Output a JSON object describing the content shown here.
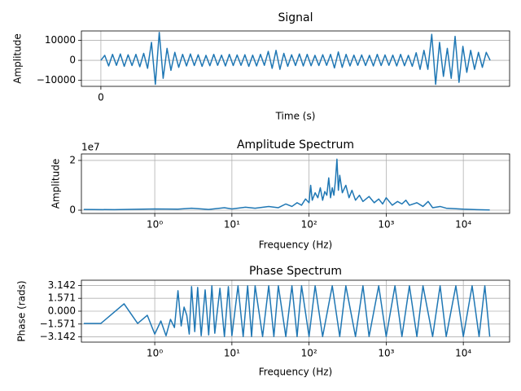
{
  "chart_data": [
    {
      "type": "line",
      "title": "Signal",
      "xlabel": "Time (s)",
      "ylabel": "Amplitude",
      "color": "#1f77b4",
      "grid": true,
      "xscale": "linear",
      "xlim": [
        -0.05,
        1.05
      ],
      "xticks": [
        0
      ],
      "ylim": [
        -13000,
        14700
      ],
      "yticks": [
        10000,
        0,
        {
          "value": -10000,
          "label": "−10000"
        }
      ],
      "x": [
        0,
        0.01,
        0.02,
        0.03,
        0.04,
        0.05,
        0.06,
        0.07,
        0.08,
        0.09,
        0.1,
        0.11,
        0.12,
        0.13,
        0.14,
        0.15,
        0.16,
        0.17,
        0.18,
        0.19,
        0.2,
        0.21,
        0.22,
        0.23,
        0.24,
        0.25,
        0.26,
        0.27,
        0.28,
        0.29,
        0.3,
        0.31,
        0.32,
        0.33,
        0.34,
        0.35,
        0.36,
        0.37,
        0.38,
        0.39,
        0.4,
        0.41,
        0.42,
        0.43,
        0.44,
        0.45,
        0.46,
        0.47,
        0.48,
        0.49,
        0.5,
        0.51,
        0.52,
        0.53,
        0.54,
        0.55,
        0.56,
        0.57,
        0.58,
        0.59,
        0.6,
        0.61,
        0.62,
        0.63,
        0.64,
        0.65,
        0.66,
        0.67,
        0.68,
        0.69,
        0.7,
        0.71,
        0.72,
        0.73,
        0.74,
        0.75,
        0.76,
        0.77,
        0.78,
        0.79,
        0.8,
        0.81,
        0.82,
        0.83,
        0.84,
        0.85,
        0.86,
        0.87,
        0.88,
        0.89,
        0.9,
        0.91,
        0.92,
        0.93,
        0.94,
        0.95,
        0.96,
        0.97,
        0.98,
        0.99,
        1
      ],
      "values": [
        0,
        2500,
        -2800,
        3000,
        -2500,
        3200,
        -3000,
        2800,
        -2600,
        3000,
        -3200,
        3500,
        -4000,
        9000,
        -12000,
        14000,
        -9000,
        6000,
        -5000,
        4000,
        -3500,
        3000,
        -2800,
        3200,
        -2600,
        2800,
        -3000,
        2500,
        -2700,
        3000,
        -2500,
        2600,
        -2800,
        3000,
        -2600,
        2700,
        -2500,
        2800,
        -3000,
        2600,
        -2800,
        3000,
        -2500,
        4500,
        -4000,
        5000,
        -4500,
        3500,
        -3000,
        2800,
        -2600,
        3200,
        -2800,
        3000,
        -2700,
        2500,
        -2600,
        2800,
        -2500,
        3000,
        -3800,
        4200,
        -3500,
        3000,
        -2800,
        2600,
        -2500,
        2700,
        -2600,
        2500,
        -2800,
        3000,
        -2600,
        2700,
        -2500,
        2600,
        -2800,
        3000,
        -2700,
        2500,
        -3000,
        3800,
        -4500,
        5000,
        -4500,
        13000,
        -12000,
        9000,
        -8000,
        6000,
        -9000,
        12000,
        -11000,
        7000,
        -6000,
        5000,
        -4500,
        4000,
        -3500,
        4000,
        0
      ]
    },
    {
      "type": "line",
      "title": "Amplitude Spectrum",
      "xlabel": "Frequency (Hz)",
      "ylabel": "Amplitude",
      "y_offset_label": "1e7",
      "color": "#1f77b4",
      "grid": true,
      "xscale": "log",
      "xlim": [
        0.112,
        39800
      ],
      "xticks": [
        {
          "value": 1,
          "label": "10⁰"
        },
        {
          "value": 10,
          "label": "10¹"
        },
        {
          "value": 100,
          "label": "10²"
        },
        {
          "value": 1000,
          "label": "10³"
        },
        {
          "value": 10000,
          "label": "10⁴"
        }
      ],
      "ylim": [
        -0.13,
        2.26
      ],
      "yticks": [
        0,
        2
      ],
      "x": [
        0.12,
        0.3,
        1,
        2,
        3,
        5,
        8,
        10,
        15,
        20,
        30,
        40,
        50,
        60,
        70,
        80,
        90,
        100,
        105,
        110,
        120,
        130,
        140,
        150,
        160,
        170,
        180,
        190,
        200,
        210,
        220,
        230,
        240,
        250,
        270,
        300,
        330,
        360,
        400,
        450,
        500,
        600,
        700,
        800,
        900,
        1000,
        1200,
        1400,
        1600,
        1800,
        2000,
        2500,
        3000,
        3500,
        4000,
        5000,
        6000,
        8000,
        10000,
        15000,
        22000
      ],
      "values": [
        0.03,
        0.02,
        0.05,
        0.04,
        0.08,
        0.03,
        0.1,
        0.05,
        0.12,
        0.08,
        0.15,
        0.1,
        0.25,
        0.15,
        0.3,
        0.2,
        0.45,
        0.3,
        1.0,
        0.4,
        0.7,
        0.5,
        0.9,
        0.4,
        0.75,
        0.6,
        1.3,
        0.5,
        0.9,
        0.6,
        1.2,
        2.05,
        0.8,
        1.4,
        0.7,
        1.0,
        0.5,
        0.8,
        0.4,
        0.6,
        0.35,
        0.55,
        0.3,
        0.45,
        0.25,
        0.5,
        0.2,
        0.35,
        0.25,
        0.4,
        0.2,
        0.3,
        0.15,
        0.35,
        0.1,
        0.15,
        0.08,
        0.06,
        0.04,
        0.02,
        0.01
      ]
    },
    {
      "type": "line",
      "title": "Phase Spectrum",
      "xlabel": "Frequency (Hz)",
      "ylabel": "Phase (rads)",
      "color": "#1f77b4",
      "grid": true,
      "xscale": "log",
      "xlim": [
        0.112,
        39800
      ],
      "xticks": [
        {
          "value": 1,
          "label": "10⁰"
        },
        {
          "value": 10,
          "label": "10¹"
        },
        {
          "value": 100,
          "label": "10²"
        },
        {
          "value": 1000,
          "label": "10³"
        },
        {
          "value": 10000,
          "label": "10⁴"
        }
      ],
      "ylim": [
        -3.78,
        3.78
      ],
      "yticks": [
        3.142,
        1.571,
        {
          "value": 0,
          "label": "0.000"
        },
        {
          "value": -1.571,
          "label": "−1.571"
        },
        {
          "value": -3.142,
          "label": "−3.142"
        }
      ],
      "x": [
        0.12,
        0.2,
        0.4,
        0.6,
        0.8,
        1.0,
        1.2,
        1.4,
        1.6,
        1.8,
        2.0,
        2.2,
        2.4,
        2.6,
        2.8,
        3.0,
        3.3,
        3.6,
        4,
        4.5,
        5,
        5.5,
        6,
        7,
        8,
        9,
        10,
        12,
        14,
        16,
        18,
        20,
        25,
        30,
        35,
        40,
        50,
        60,
        70,
        80,
        100,
        120,
        150,
        200,
        250,
        300,
        400,
        500,
        600,
        800,
        1000,
        1300,
        1600,
        2000,
        2500,
        3000,
        4000,
        5000,
        6000,
        8000,
        10000,
        13000,
        16000,
        19000,
        22000
      ],
      "values": [
        -1.5,
        -1.5,
        0.9,
        -1.5,
        -0.5,
        -2.8,
        -1.2,
        -3.0,
        -1.0,
        -2.0,
        2.5,
        -1.8,
        0.5,
        -0.5,
        -2.8,
        3.0,
        -2.5,
        2.9,
        -3.0,
        2.6,
        -2.9,
        3.1,
        -2.7,
        2.8,
        -3.1,
        3.0,
        -3.0,
        3.1,
        -3.1,
        3.1,
        -3.1,
        3.1,
        -3.1,
        3.1,
        -3.1,
        3.1,
        -3.1,
        3.1,
        -3.1,
        3.1,
        -3.1,
        3.1,
        -3.1,
        3.1,
        -3.1,
        3.1,
        -3.1,
        3.1,
        -3.1,
        3.1,
        -3.1,
        3.1,
        -3.1,
        3.1,
        -3.1,
        3.1,
        -3.1,
        3.1,
        -3.1,
        3.1,
        -3.1,
        3.1,
        -3.1,
        3.1,
        -3.1
      ]
    }
  ]
}
